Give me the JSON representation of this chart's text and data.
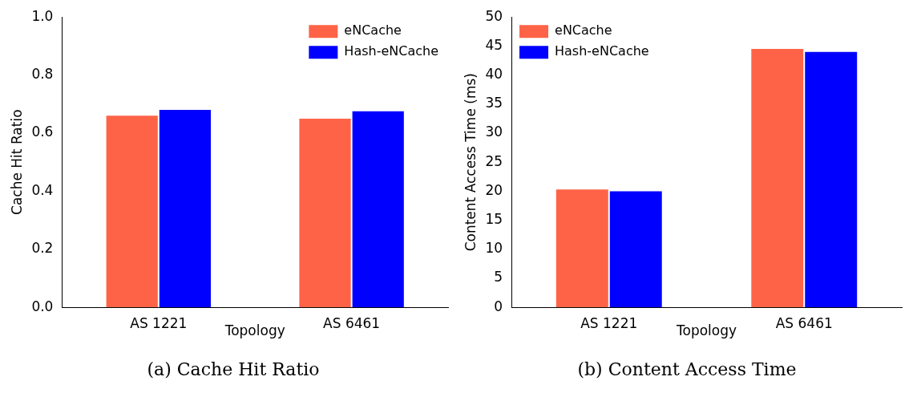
{
  "chart_data": [
    {
      "type": "bar",
      "title": "(a) Cache Hit Ratio",
      "xlabel": "Topology",
      "ylabel": "Cache Hit Ratio",
      "categories": [
        "AS 1221",
        "AS 6461"
      ],
      "series": [
        {
          "name": "eNCache",
          "color": "#ff6347",
          "values": [
            0.66,
            0.65
          ]
        },
        {
          "name": "Hash-eNCache",
          "color": "#0000ff",
          "values": [
            0.68,
            0.675
          ]
        }
      ],
      "ylim": [
        0,
        1
      ],
      "yticks": [
        {
          "value": 0,
          "label": "0.0"
        },
        0.2,
        0.4,
        0.6,
        0.8,
        {
          "value": 1,
          "label": "1.0"
        }
      ],
      "grid": false,
      "legend": "top right"
    },
    {
      "type": "bar",
      "title": "(b) Content Access Time",
      "xlabel": "Topology",
      "ylabel": "Content Access Time (ms)",
      "categories": [
        "AS 1221",
        "AS 6461"
      ],
      "series": [
        {
          "name": "eNCache",
          "color": "#ff6347",
          "values": [
            20.3,
            44.5
          ]
        },
        {
          "name": "Hash-eNCache",
          "color": "#0000ff",
          "values": [
            20,
            44
          ]
        }
      ],
      "ylim": [
        0,
        50
      ],
      "yticks": [
        0,
        5,
        10,
        15,
        20,
        25,
        30,
        35,
        40,
        45,
        50
      ],
      "grid": false,
      "legend": "top left"
    }
  ]
}
